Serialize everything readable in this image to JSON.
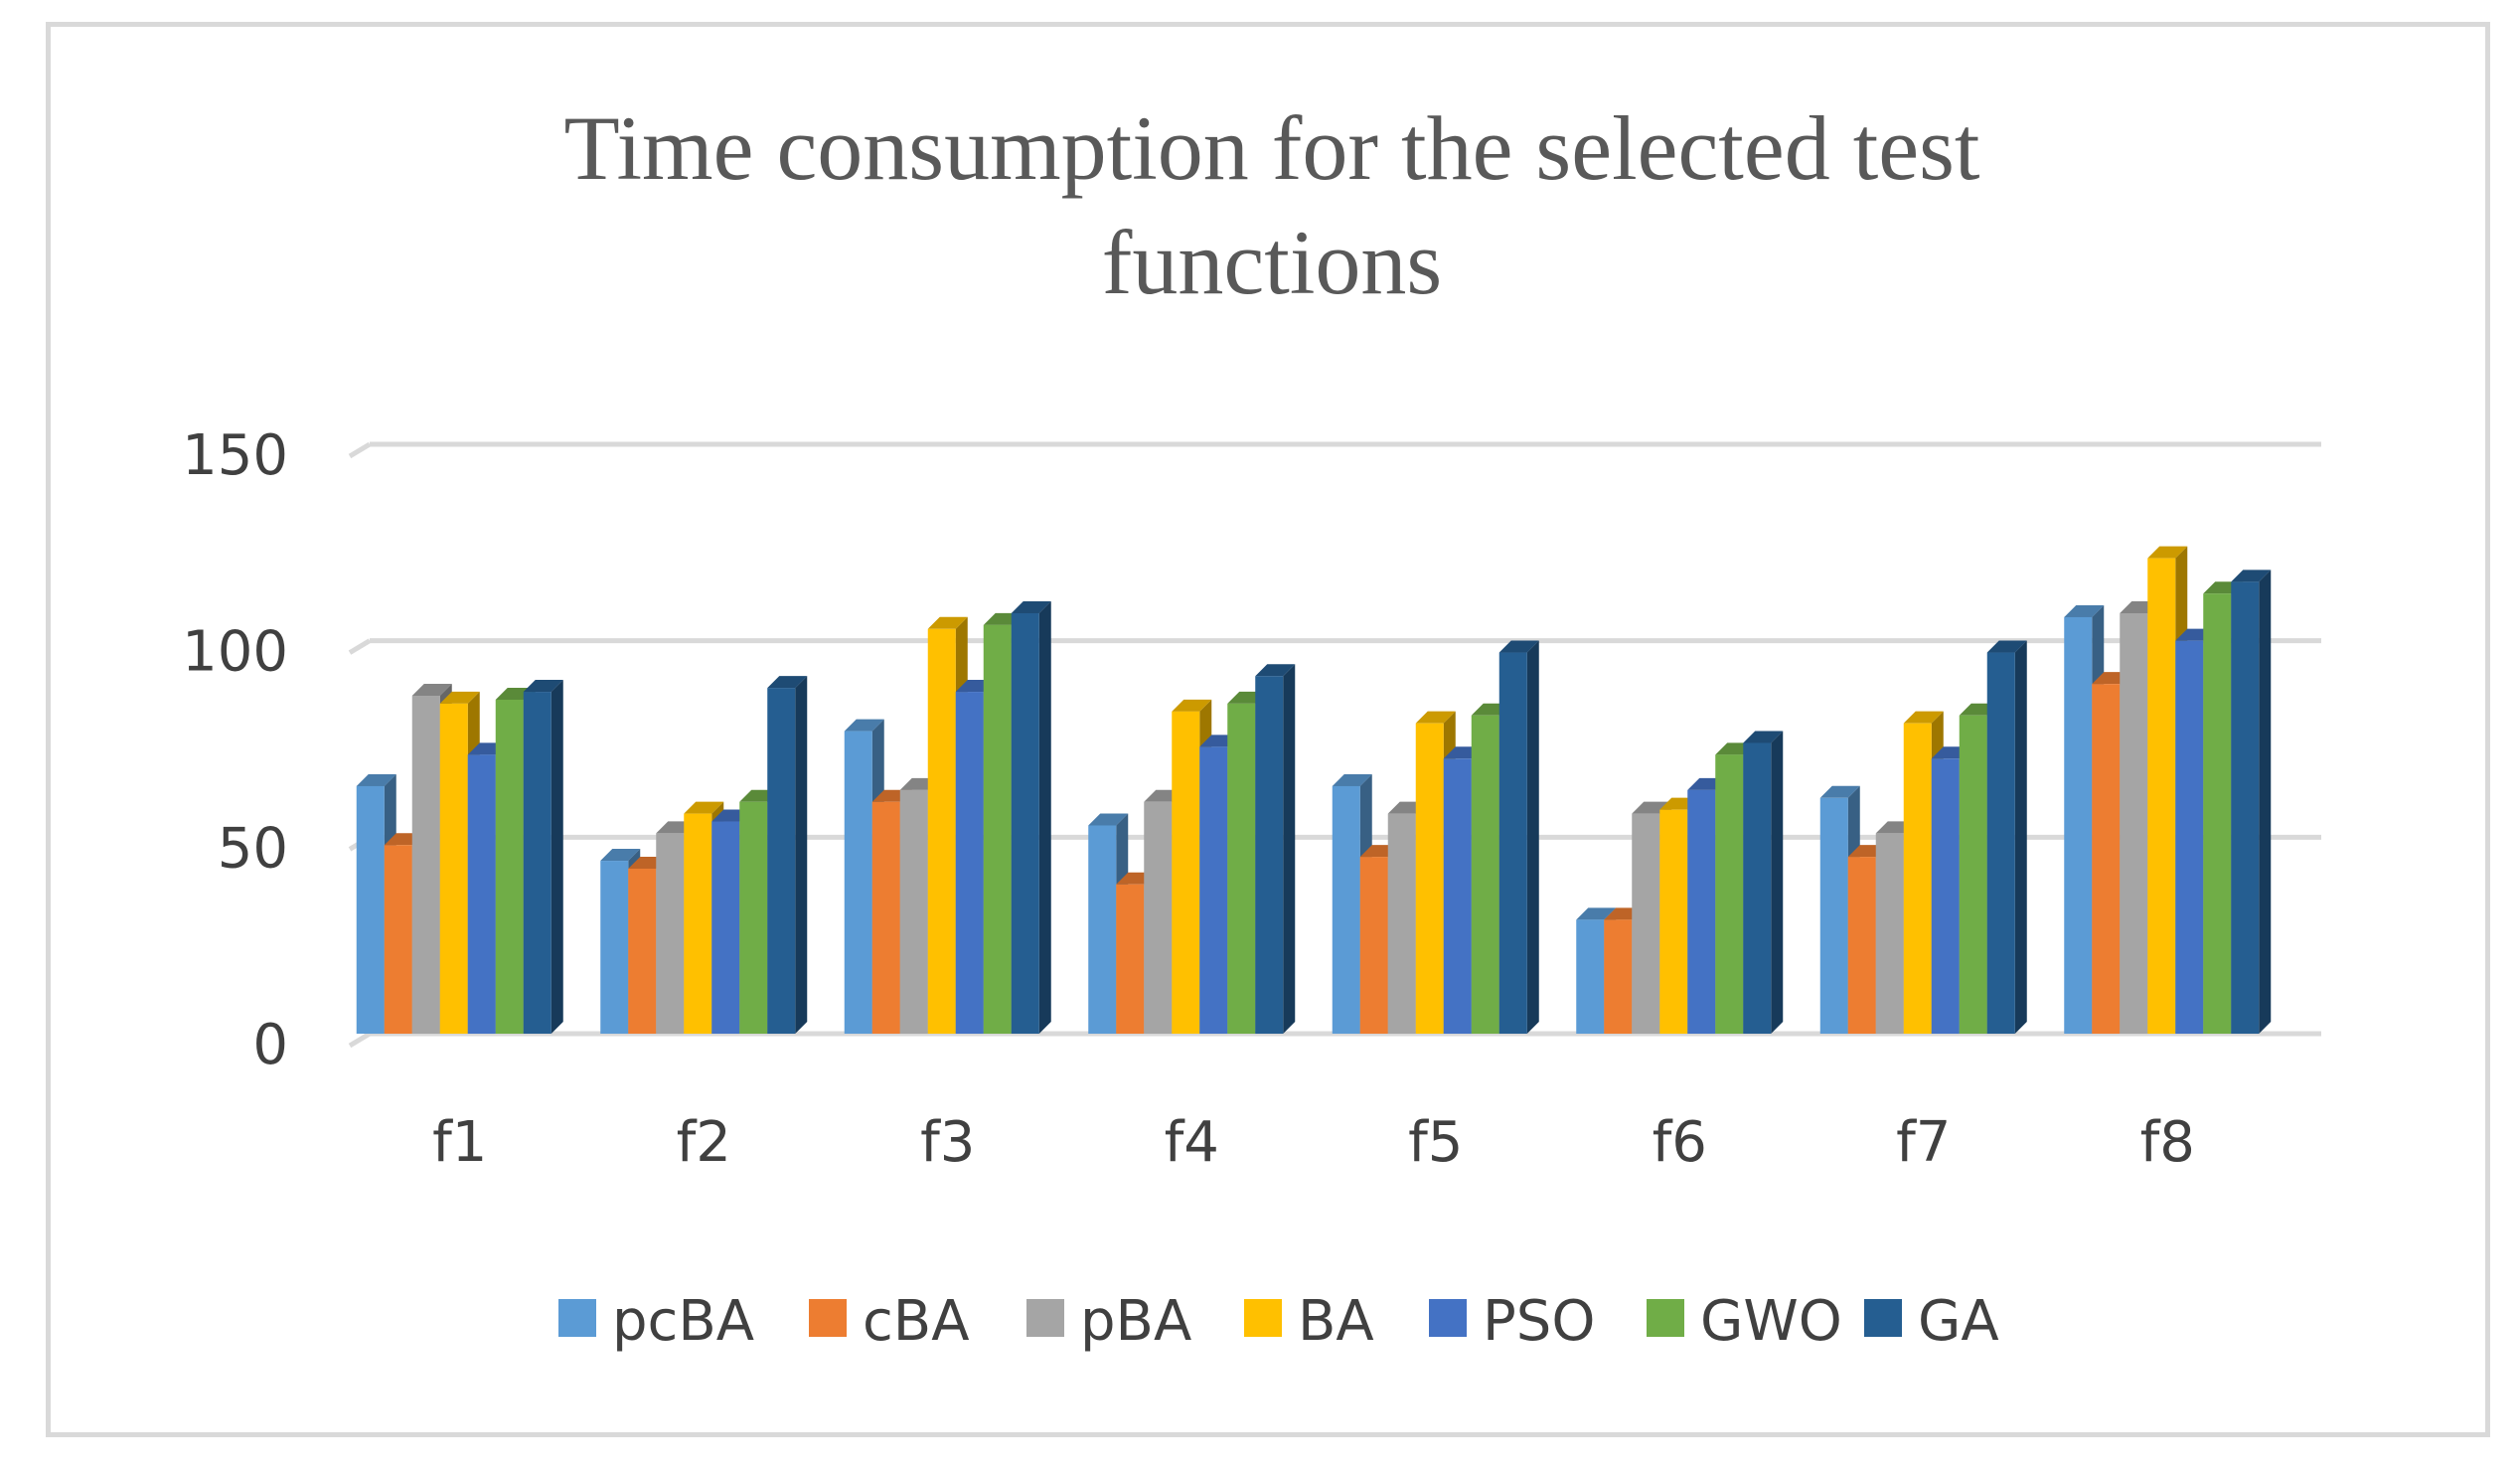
{
  "chart_data": {
    "type": "bar",
    "title_lines": [
      "Time consumption for the selected test",
      "functions"
    ],
    "xlabel": "",
    "ylabel": "",
    "categories": [
      "f1",
      "f2",
      "f3",
      "f4",
      "f5",
      "f6",
      "f7",
      "f8"
    ],
    "y_ticks": [
      "0",
      "50",
      "100",
      "150"
    ],
    "ylim": [
      0,
      150
    ],
    "grid": true,
    "legend_position": "bottom",
    "series": [
      {
        "name": "pcBA",
        "color": "#5B9BD5",
        "values": [
          63,
          44,
          77,
          53,
          63,
          29,
          60,
          106
        ]
      },
      {
        "name": "cBA",
        "color": "#ED7D31",
        "values": [
          48,
          42,
          59,
          38,
          45,
          29,
          45,
          89
        ]
      },
      {
        "name": "pBA",
        "color": "#A5A5A5",
        "values": [
          86,
          51,
          62,
          59,
          56,
          56,
          51,
          107
        ]
      },
      {
        "name": "BA",
        "color": "#FFC000",
        "values": [
          84,
          56,
          103,
          82,
          79,
          57,
          79,
          121
        ]
      },
      {
        "name": "PSO",
        "color": "#4472C4",
        "values": [
          71,
          54,
          87,
          73,
          70,
          62,
          70,
          100
        ]
      },
      {
        "name": "GWO",
        "color": "#70AD47",
        "values": [
          85,
          59,
          104,
          84,
          81,
          71,
          81,
          112
        ]
      },
      {
        "name": "GA",
        "color": "#255E91",
        "values": [
          87,
          88,
          107,
          91,
          97,
          74,
          97,
          115
        ]
      }
    ]
  }
}
